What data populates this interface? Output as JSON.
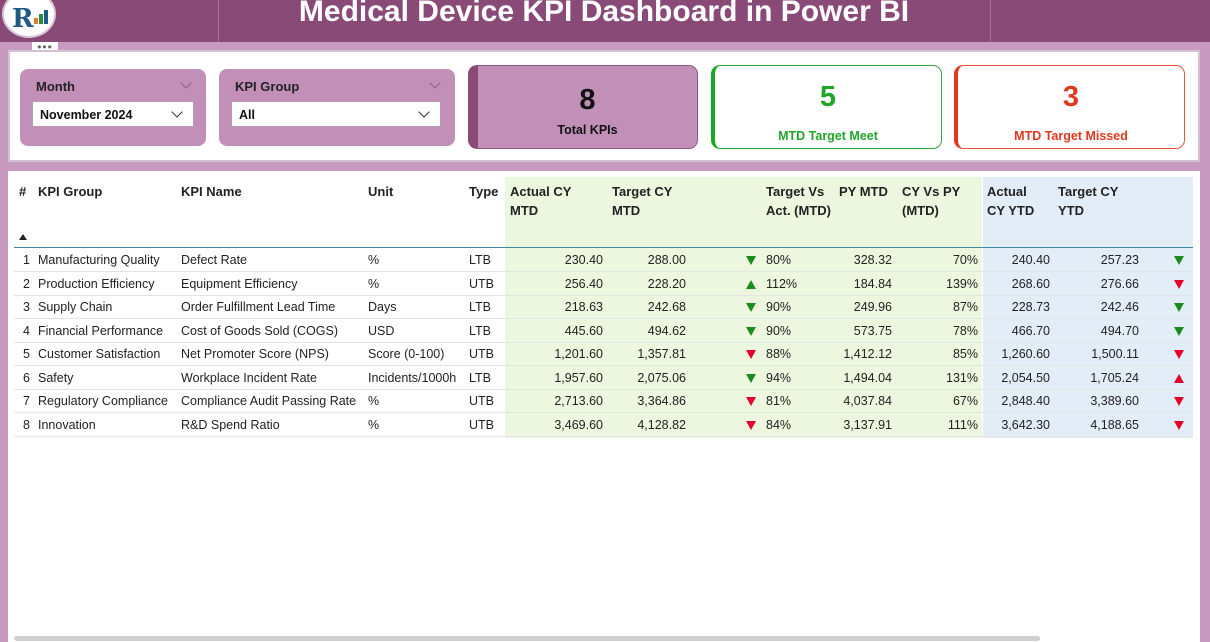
{
  "header": {
    "title": "Medical Device KPI Dashboard in Power BI",
    "logo_letter": "R"
  },
  "filters": {
    "month": {
      "label": "Month",
      "value": "November 2024"
    },
    "kpi_group": {
      "label": "KPI Group",
      "value": "All"
    }
  },
  "cards": {
    "total": {
      "value": "8",
      "label": "Total KPIs"
    },
    "meet": {
      "value": "5",
      "label": "MTD Target Meet"
    },
    "missed": {
      "value": "3",
      "label": "MTD Target Missed"
    }
  },
  "colors": {
    "header": "#8a4a78",
    "accent": "#c28fb8",
    "good": "#1d8a1d",
    "bad": "#e4002b"
  },
  "table": {
    "headers": {
      "num": "#",
      "group": "KPI Group",
      "name": "KPI Name",
      "unit": "Unit",
      "type": "Type",
      "act_mtd": "Actual CY MTD",
      "tgt_mtd": "Target CY MTD",
      "tva_mtd": "Target Vs Act. (MTD)",
      "py_mtd": "PY MTD",
      "cvp_mtd": "CY Vs PY (MTD)",
      "act_ytd": "Actual CY YTD",
      "tgt_ytd": "Target CY YTD"
    },
    "rows": [
      {
        "num": "1",
        "group": "Manufacturing Quality",
        "name": "Defect Rate",
        "unit": "%",
        "type": "LTB",
        "act_mtd": "230.40",
        "tgt_mtd": "288.00",
        "mtd_icon": "down-green",
        "tva_mtd": "80%",
        "py_mtd": "328.32",
        "cvp_mtd": "70%",
        "act_ytd": "240.40",
        "tgt_ytd": "257.23",
        "ytd_icon": "down-green"
      },
      {
        "num": "2",
        "group": "Production Efficiency",
        "name": "Equipment Efficiency",
        "unit": "%",
        "type": "UTB",
        "act_mtd": "256.40",
        "tgt_mtd": "228.20",
        "mtd_icon": "up-green",
        "tva_mtd": "112%",
        "py_mtd": "184.84",
        "cvp_mtd": "139%",
        "act_ytd": "268.60",
        "tgt_ytd": "276.66",
        "ytd_icon": "down-red"
      },
      {
        "num": "3",
        "group": "Supply Chain",
        "name": "Order Fulfillment Lead Time",
        "unit": "Days",
        "type": "LTB",
        "act_mtd": "218.63",
        "tgt_mtd": "242.68",
        "mtd_icon": "down-green",
        "tva_mtd": "90%",
        "py_mtd": "249.96",
        "cvp_mtd": "87%",
        "act_ytd": "228.73",
        "tgt_ytd": "242.46",
        "ytd_icon": "down-green"
      },
      {
        "num": "4",
        "group": "Financial Performance",
        "name": "Cost of Goods Sold (COGS)",
        "unit": "USD",
        "type": "LTB",
        "act_mtd": "445.60",
        "tgt_mtd": "494.62",
        "mtd_icon": "down-green",
        "tva_mtd": "90%",
        "py_mtd": "573.75",
        "cvp_mtd": "78%",
        "act_ytd": "466.70",
        "tgt_ytd": "494.70",
        "ytd_icon": "down-green"
      },
      {
        "num": "5",
        "group": "Customer Satisfaction",
        "name": "Net Promoter Score (NPS)",
        "unit": "Score (0-100)",
        "type": "UTB",
        "act_mtd": "1,201.60",
        "tgt_mtd": "1,357.81",
        "mtd_icon": "down-red",
        "tva_mtd": "88%",
        "py_mtd": "1,412.12",
        "cvp_mtd": "85%",
        "act_ytd": "1,260.60",
        "tgt_ytd": "1,500.11",
        "ytd_icon": "down-red"
      },
      {
        "num": "6",
        "group": "Safety",
        "name": "Workplace Incident Rate",
        "unit": "Incidents/1000h",
        "type": "LTB",
        "act_mtd": "1,957.60",
        "tgt_mtd": "2,075.06",
        "mtd_icon": "down-green",
        "tva_mtd": "94%",
        "py_mtd": "1,494.04",
        "cvp_mtd": "131%",
        "act_ytd": "2,054.50",
        "tgt_ytd": "1,705.24",
        "ytd_icon": "up-red"
      },
      {
        "num": "7",
        "group": "Regulatory Compliance",
        "name": "Compliance Audit Passing Rate",
        "unit": "%",
        "type": "UTB",
        "act_mtd": "2,713.60",
        "tgt_mtd": "3,364.86",
        "mtd_icon": "down-red",
        "tva_mtd": "81%",
        "py_mtd": "4,037.84",
        "cvp_mtd": "67%",
        "act_ytd": "2,848.40",
        "tgt_ytd": "3,389.60",
        "ytd_icon": "down-red"
      },
      {
        "num": "8",
        "group": "Innovation",
        "name": "R&D Spend Ratio",
        "unit": "%",
        "type": "UTB",
        "act_mtd": "3,469.60",
        "tgt_mtd": "4,128.82",
        "mtd_icon": "down-red",
        "tva_mtd": "84%",
        "py_mtd": "3,137.91",
        "cvp_mtd": "111%",
        "act_ytd": "3,642.30",
        "tgt_ytd": "4,188.65",
        "ytd_icon": "down-red"
      }
    ]
  }
}
